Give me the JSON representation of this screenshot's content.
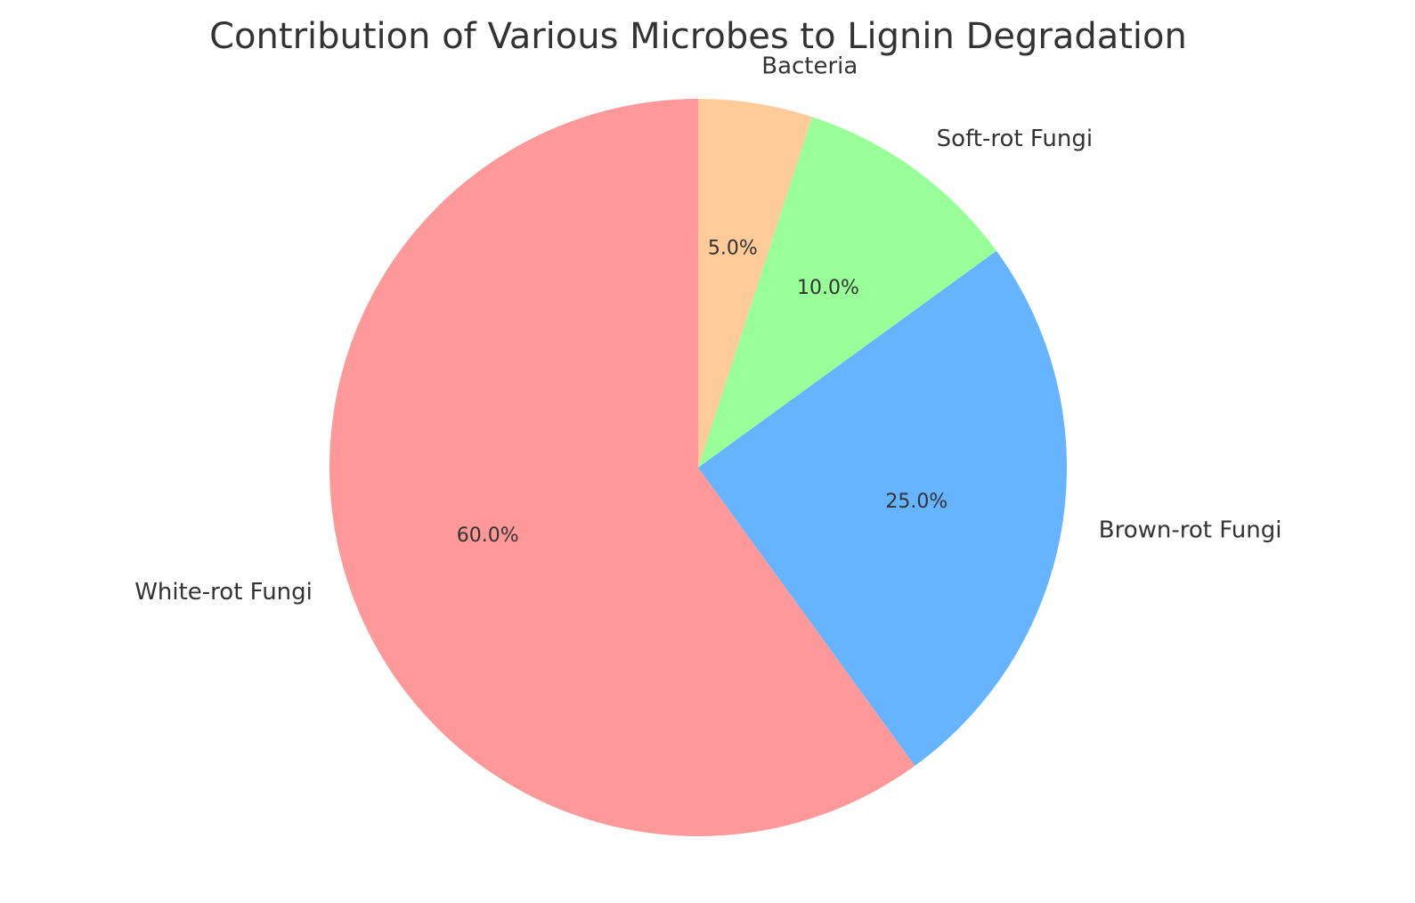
{
  "chart_data": {
    "type": "pie",
    "title": "Contribution of Various Microbes to Lignin Degradation",
    "categories": [
      "White-rot Fungi",
      "Brown-rot Fungi",
      "Soft-rot Fungi",
      "Bacteria"
    ],
    "values": [
      60,
      25,
      10,
      5
    ],
    "percent_labels": [
      "60.0%",
      "25.0%",
      "10.0%",
      "5.0%"
    ],
    "colors": [
      "#ff9999",
      "#66b3ff",
      "#99ff99",
      "#ffcc99"
    ],
    "start_angle": 90,
    "direction": "counterclockwise",
    "legend": "none"
  }
}
